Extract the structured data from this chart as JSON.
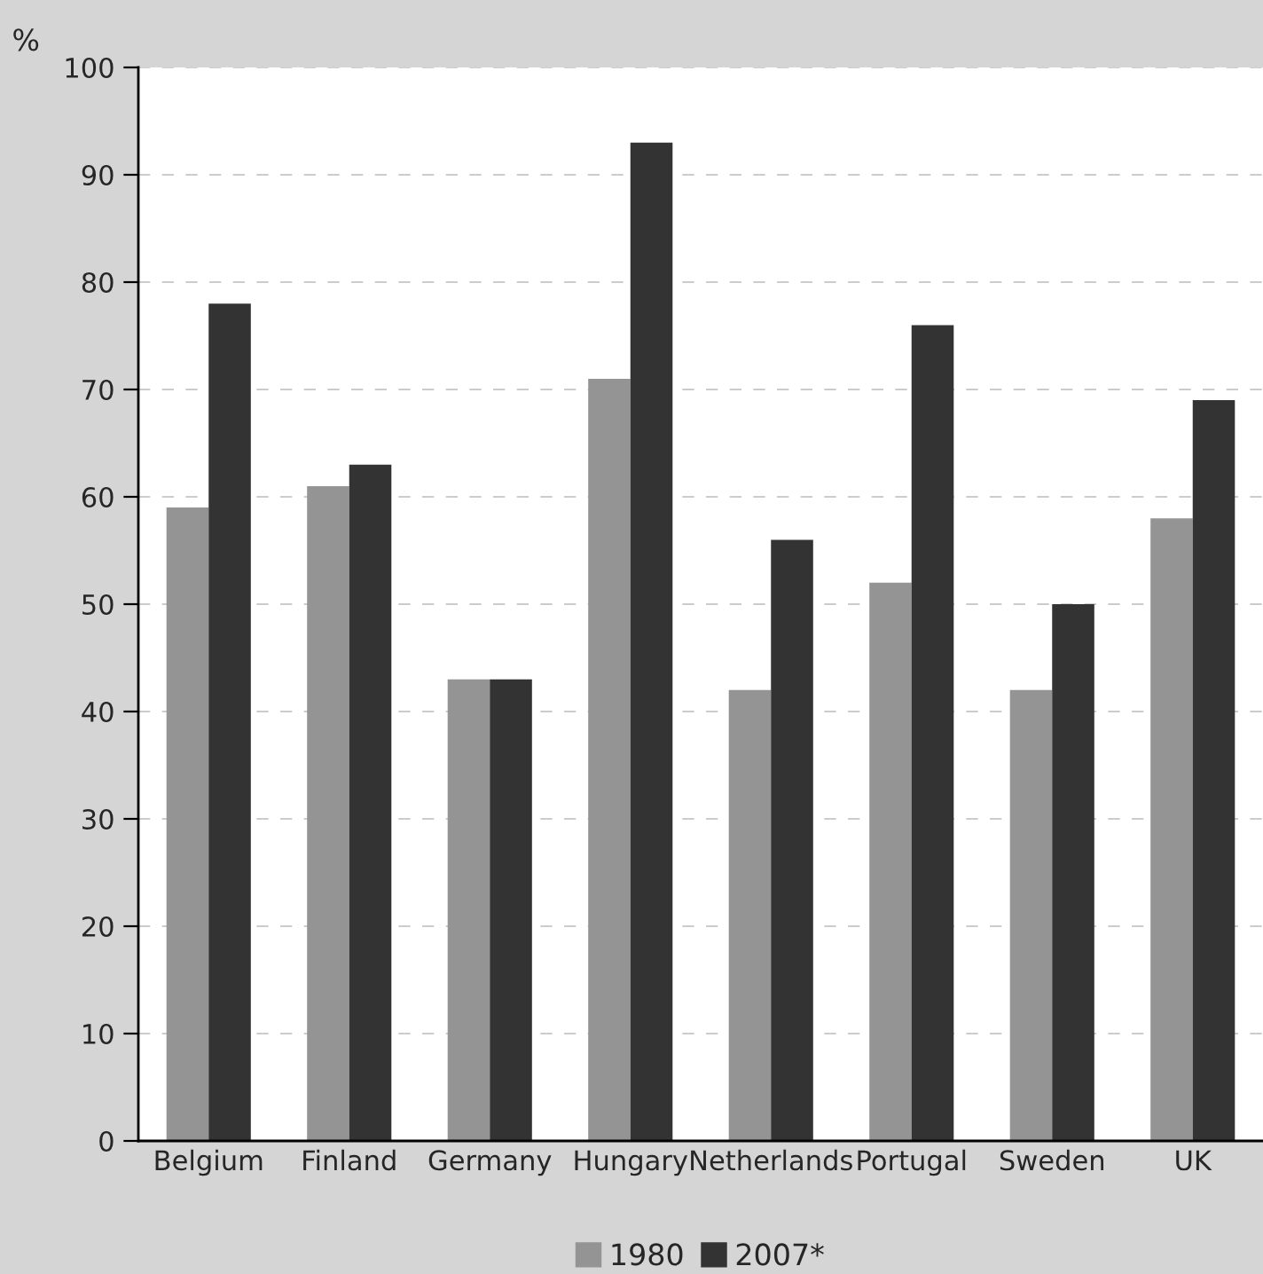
{
  "chart_data": {
    "type": "bar",
    "ylabel": "%",
    "categories": [
      "Belgium",
      "Finland",
      "Germany",
      "Hungary",
      "Netherlands",
      "Portugal",
      "Sweden",
      "UK"
    ],
    "series": [
      {
        "name": "1980",
        "color": "#949494",
        "values": [
          59,
          61,
          43,
          71,
          42,
          52,
          42,
          58
        ]
      },
      {
        "name": "2007*",
        "color": "#333333",
        "values": [
          78,
          63,
          43,
          93,
          56,
          76,
          50,
          69
        ]
      }
    ],
    "ylim": [
      0,
      100
    ],
    "yticks": [
      0,
      10,
      20,
      30,
      40,
      50,
      60,
      70,
      80,
      90,
      100
    ],
    "grid": "y",
    "legend": "bottom"
  }
}
